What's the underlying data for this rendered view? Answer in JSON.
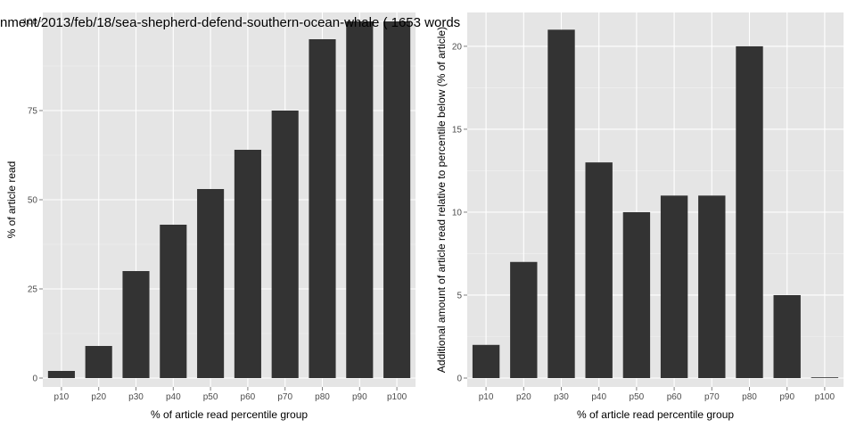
{
  "chart_data": [
    {
      "type": "bar",
      "title": "nment/2013/feb/18/sea-shepherd-defend-southern-ocean-whale ( 1653 words",
      "xlabel": "% of article read percentile group",
      "ylabel": "% of article read",
      "categories": [
        "p10",
        "p20",
        "p30",
        "p40",
        "p50",
        "p60",
        "p70",
        "p80",
        "p90",
        "p100"
      ],
      "values": [
        2,
        9,
        30,
        43,
        53,
        64,
        75,
        95,
        100,
        100
      ],
      "ylim": [
        0,
        100
      ],
      "yticks": [
        0,
        25,
        50,
        75,
        100
      ],
      "bar_color": "#333333",
      "panel_color": "#e5e5e5",
      "grid": true,
      "legend": "none"
    },
    {
      "type": "bar",
      "xlabel": "% of article read percentile group",
      "ylabel": "Additional amount of article read relative to percentile below (% of article)",
      "categories": [
        "p10",
        "p20",
        "p30",
        "p40",
        "p50",
        "p60",
        "p70",
        "p80",
        "p90",
        "p100"
      ],
      "values": [
        2,
        7,
        21,
        13,
        10,
        11,
        11,
        20,
        5,
        0
      ],
      "ylim": [
        0,
        21.5
      ],
      "yticks": [
        0,
        5,
        10,
        15,
        20
      ],
      "bar_color": "#333333",
      "panel_color": "#e5e5e5",
      "grid": true,
      "legend": "none"
    }
  ]
}
